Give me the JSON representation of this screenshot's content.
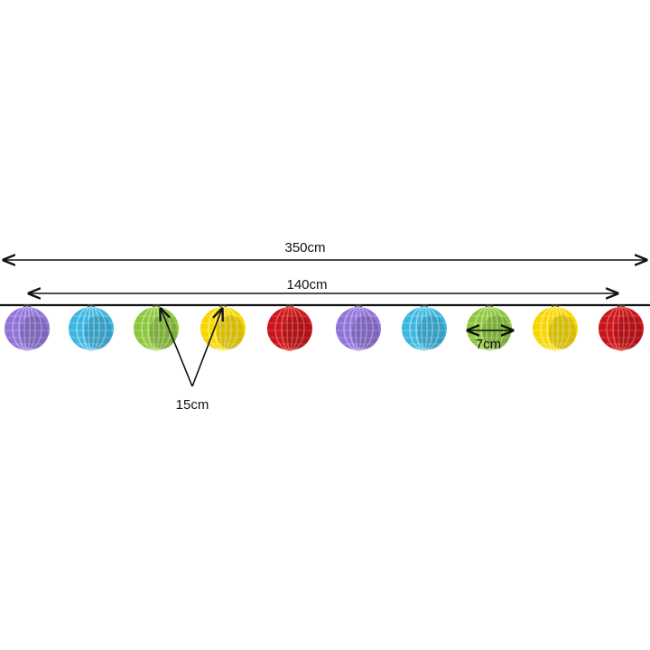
{
  "dimensions": {
    "total_length": "350cm",
    "lit_length": "140cm",
    "spacing": "15cm",
    "lantern_diameter": "7cm"
  }
}
